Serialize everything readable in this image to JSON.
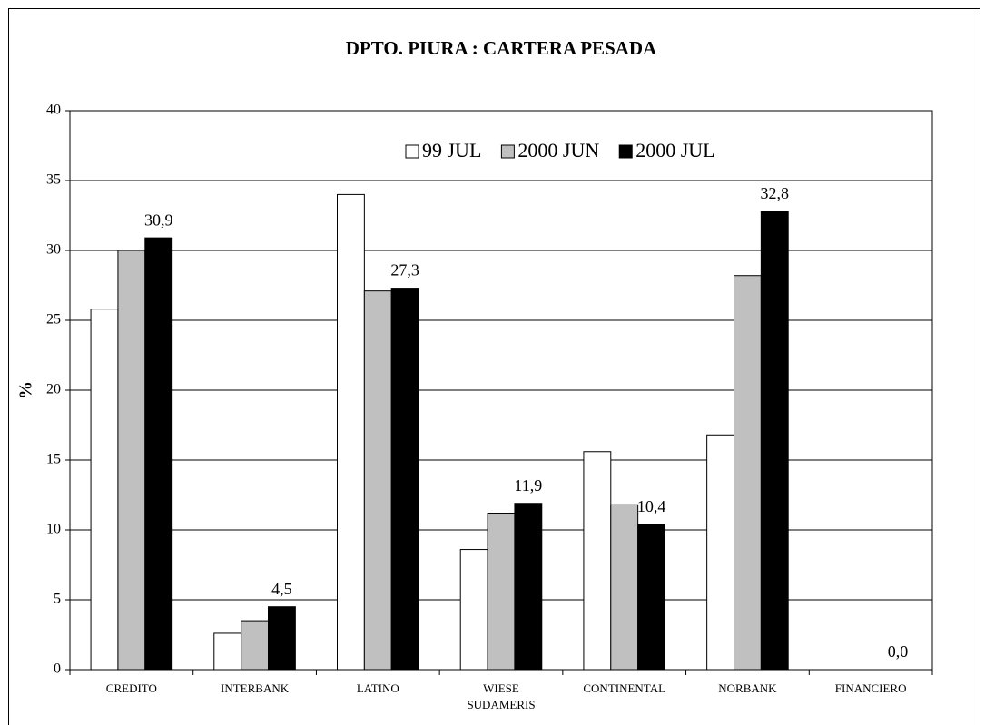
{
  "chart_data": {
    "type": "bar",
    "title": "DPTO. PIURA : CARTERA PESADA",
    "y_label": "%",
    "categories": [
      "CREDITO",
      "INTERBANK",
      "LATINO",
      "WIESE SUDAMERIS",
      "CONTINENTAL",
      "NORBANK",
      "FINANCIERO"
    ],
    "series": [
      {
        "name": "99 JUL",
        "color": "#ffffff",
        "values": [
          25.8,
          2.6,
          34.0,
          8.6,
          15.6,
          16.8,
          0
        ]
      },
      {
        "name": "2000 JUN",
        "color": "#c0c0c0",
        "values": [
          30.0,
          3.5,
          27.1,
          11.2,
          11.8,
          28.2,
          0
        ]
      },
      {
        "name": "2000 JUL",
        "color": "#000000",
        "values": [
          30.9,
          4.5,
          27.3,
          11.9,
          10.4,
          32.8,
          0
        ],
        "value_labels": [
          "30,9",
          "4,5",
          "27,3",
          "11,9",
          "10,4",
          "32,8",
          "0,0"
        ]
      }
    ],
    "ylim": [
      0,
      40
    ],
    "yticks": [
      0,
      5,
      10,
      15,
      20,
      25,
      30,
      35,
      40
    ],
    "grid": true,
    "legend": "top"
  }
}
